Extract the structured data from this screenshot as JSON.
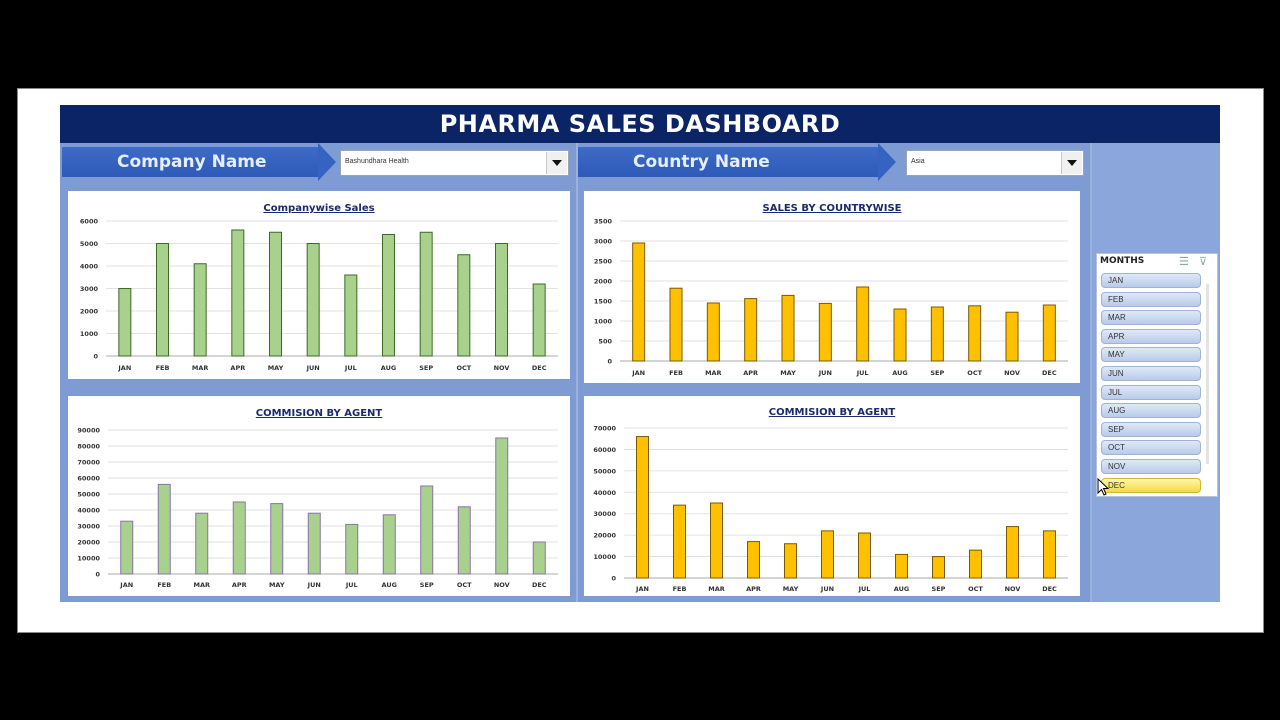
{
  "header": {
    "title": "PHARMA SALES DASHBOARD"
  },
  "filters": {
    "company_label": "Company Name",
    "company_value": "Bashundhara Health",
    "country_label": "Country Name",
    "country_value": "Asia"
  },
  "slicer": {
    "title": "MONTHS",
    "items": [
      "JAN",
      "FEB",
      "MAR",
      "APR",
      "MAY",
      "JUN",
      "JUL",
      "AUG",
      "SEP",
      "OCT",
      "NOV",
      "DEC"
    ],
    "selected": "DEC"
  },
  "colors": {
    "green": "#a9d18e",
    "gold": "#ffc000",
    "navy": "#0b2466"
  },
  "chart_data": [
    {
      "id": "companywise",
      "type": "bar",
      "title": "Companywise Sales",
      "categories": [
        "JAN",
        "FEB",
        "MAR",
        "APR",
        "MAY",
        "JUN",
        "JUL",
        "AUG",
        "SEP",
        "OCT",
        "NOV",
        "DEC"
      ],
      "values": [
        3000,
        5000,
        4100,
        5600,
        5500,
        5000,
        3600,
        5400,
        5500,
        4500,
        5000,
        3200
      ],
      "ylim": [
        0,
        6000
      ],
      "yticks": [
        0,
        1000,
        2000,
        3000,
        4000,
        5000,
        6000
      ],
      "grid": true
    },
    {
      "id": "countrywise",
      "type": "bar",
      "title": "SALES BY COUNTRYWISE",
      "categories": [
        "JAN",
        "FEB",
        "MAR",
        "APR",
        "MAY",
        "JUN",
        "JUL",
        "AUG",
        "SEP",
        "OCT",
        "NOV",
        "DEC"
      ],
      "values": [
        2950,
        1820,
        1450,
        1560,
        1640,
        1440,
        1850,
        1300,
        1350,
        1380,
        1220,
        1400
      ],
      "ylim": [
        0,
        3500
      ],
      "yticks": [
        0,
        500,
        1000,
        1500,
        2000,
        2500,
        3000,
        3500
      ],
      "grid": true
    },
    {
      "id": "agent_left",
      "type": "bar",
      "title": "COMMISION BY AGENT",
      "categories": [
        "JAN",
        "FEB",
        "MAR",
        "APR",
        "MAY",
        "JUN",
        "JUL",
        "AUG",
        "SEP",
        "OCT",
        "NOV",
        "DEC"
      ],
      "values": [
        33000,
        56000,
        38000,
        45000,
        44000,
        38000,
        31000,
        37000,
        55000,
        42000,
        85000,
        20000
      ],
      "ylim": [
        0,
        90000
      ],
      "yticks": [
        0,
        10000,
        20000,
        30000,
        40000,
        50000,
        60000,
        70000,
        80000,
        90000
      ],
      "grid": true
    },
    {
      "id": "agent_right",
      "type": "bar",
      "title": "COMMISION BY AGENT",
      "categories": [
        "JAN",
        "FEB",
        "MAR",
        "APR",
        "MAY",
        "JUN",
        "JUL",
        "AUG",
        "SEP",
        "OCT",
        "NOV",
        "DEC"
      ],
      "values": [
        66000,
        34000,
        35000,
        17000,
        16000,
        22000,
        21000,
        11000,
        10000,
        13000,
        24000,
        22000
      ],
      "ylim": [
        0,
        70000
      ],
      "yticks": [
        0,
        10000,
        20000,
        30000,
        40000,
        50000,
        60000,
        70000
      ],
      "grid": true
    }
  ]
}
